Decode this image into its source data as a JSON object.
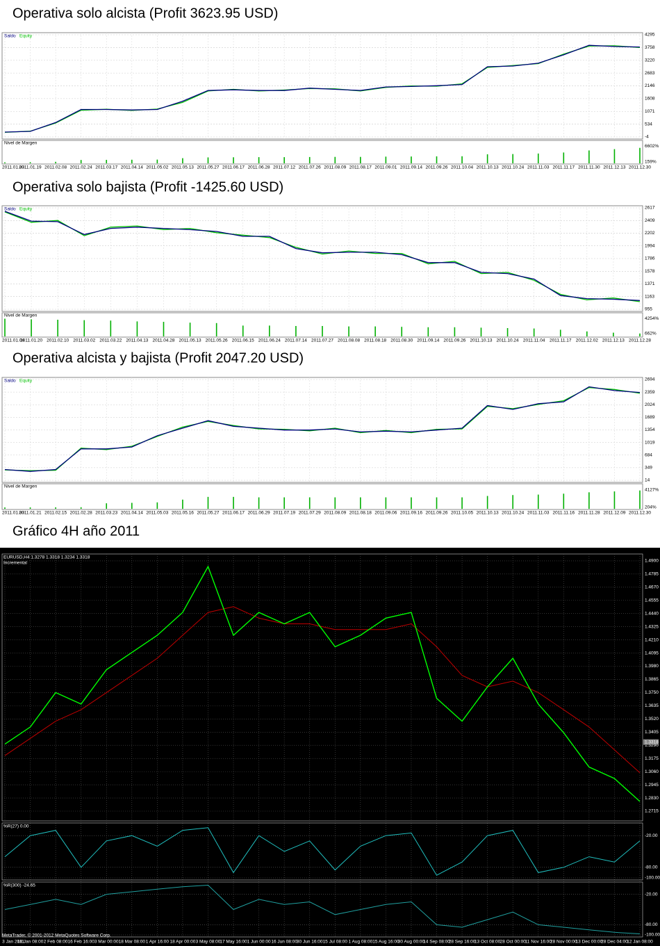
{
  "chart_data": [
    {
      "type": "line",
      "title": "Operativa solo alcista (Profit 3623.95 USD)",
      "categories": [
        "2011.01.03",
        "2011.01.19",
        "2011.02.08",
        "2011.02.24",
        "2011.03.17",
        "2011.04.14",
        "2011.05.02",
        "2011.05.13",
        "2011.05.27",
        "2011.06.17",
        "2011.06.28",
        "2011.07.12",
        "2011.07.26",
        "2011.08.09",
        "2011.08.17",
        "2011.09.01",
        "2011.09.14",
        "2011.09.26",
        "2011.10.04",
        "2011.10.13",
        "2011.10.24",
        "2011.11.03",
        "2011.11.17",
        "2011.11.30",
        "2011.12.13",
        "2011.12.30"
      ],
      "series": [
        {
          "name": "Saldo",
          "color": "#000080",
          "values": [
            200,
            230,
            600,
            1150,
            1150,
            1130,
            1150,
            1500,
            1950,
            1980,
            1950,
            1950,
            2050,
            2000,
            1950,
            2100,
            2120,
            2150,
            2200,
            2950,
            2980,
            3100,
            3450,
            3850,
            3800,
            3780
          ]
        },
        {
          "name": "Equity",
          "color": "#00c000",
          "values": [
            190,
            240,
            580,
            1120,
            1160,
            1110,
            1170,
            1450,
            1930,
            2000,
            1930,
            1970,
            2030,
            2020,
            1930,
            2080,
            2140,
            2130,
            2230,
            2920,
            3000,
            3080,
            3480,
            3820,
            3830,
            3760
          ]
        }
      ],
      "ylim": [
        -4,
        4295
      ],
      "yticks": [
        4295,
        3758,
        3220,
        2683,
        2146,
        1608,
        1071,
        534,
        -4
      ],
      "grid": true,
      "margin_panel": {
        "label": "Nivel de Margen",
        "color": "#00b000",
        "ylim": [
          0,
          7000
        ],
        "ticks": [
          {
            "value": 6602,
            "label": "6602%"
          },
          {
            "value": 159,
            "label": "159%"
          }
        ],
        "values": [
          400,
          450,
          600,
          1300,
          1350,
          1400,
          1450,
          2000,
          2300,
          2350,
          2400,
          2400,
          2450,
          2500,
          2500,
          2600,
          2650,
          2700,
          2750,
          3500,
          3600,
          3800,
          4200,
          5000,
          5500,
          6000
        ]
      }
    },
    {
      "type": "line",
      "title": "Operativa solo bajista (Profit -1425.60 USD)",
      "categories": [
        "2011.01.04",
        "2011.01.20",
        "2011.02.10",
        "2011.03.02",
        "2011.03.22",
        "2011.04.13",
        "2011.04.28",
        "2011.05.13",
        "2011.05.26",
        "2011.06.15",
        "2011.06.24",
        "2011.07.14",
        "2011.07.27",
        "2011.08.08",
        "2011.08.18",
        "2011.08.30",
        "2011.09.14",
        "2011.09.26",
        "2011.10.13",
        "2011.10.24",
        "2011.11.04",
        "2011.11.17",
        "2011.12.02",
        "2011.12.13",
        "2011.12.28"
      ],
      "series": [
        {
          "name": "Saldo",
          "color": "#000080",
          "values": [
            2560,
            2400,
            2390,
            2180,
            2280,
            2300,
            2280,
            2260,
            2230,
            2150,
            2150,
            1950,
            1880,
            1890,
            1890,
            1850,
            1720,
            1720,
            1560,
            1540,
            1450,
            1180,
            1130,
            1120,
            1100
          ]
        },
        {
          "name": "Equity",
          "color": "#00c000",
          "values": [
            2550,
            2380,
            2410,
            2160,
            2300,
            2320,
            2260,
            2280,
            2210,
            2170,
            2130,
            1970,
            1860,
            1910,
            1870,
            1870,
            1700,
            1740,
            1540,
            1560,
            1430,
            1200,
            1110,
            1140,
            1080
          ]
        }
      ],
      "ylim": [
        955,
        2617
      ],
      "yticks": [
        2617,
        2409,
        2202,
        1994,
        1786,
        1578,
        1371,
        1163,
        955
      ],
      "grid": true,
      "margin_panel": {
        "label": "Nivel de Margen",
        "color": "#00b000",
        "ylim": [
          0,
          4500
        ],
        "ticks": [
          {
            "value": 4254,
            "label": "4254%"
          },
          {
            "value": 662,
            "label": "662%"
          }
        ],
        "values": [
          4254,
          4100,
          4000,
          3900,
          3800,
          3600,
          3500,
          3300,
          3200,
          2600,
          2600,
          2500,
          2500,
          2400,
          2400,
          2300,
          2200,
          2200,
          2100,
          2000,
          1900,
          1600,
          1200,
          900,
          700
        ]
      }
    },
    {
      "type": "line",
      "title": "Operativa alcista y bajista (Profit 2047.20 USD)",
      "categories": [
        "2011.01.03",
        "2011.01.21",
        "2011.02.15",
        "2011.02.28",
        "2011.03.23",
        "2011.04.14",
        "2011.05.03",
        "2011.05.16",
        "2011.05.27",
        "2011.06.17",
        "2011.06.29",
        "2011.07.19",
        "2011.07.29",
        "2011.08.09",
        "2011.08.18",
        "2011.09.06",
        "2011.09.16",
        "2011.09.26",
        "2011.10.05",
        "2011.10.13",
        "2011.10.24",
        "2011.11.03",
        "2011.11.16",
        "2011.11.28",
        "2011.12.09",
        "2011.12.30"
      ],
      "series": [
        {
          "name": "Saldo",
          "color": "#000080",
          "values": [
            300,
            250,
            300,
            850,
            850,
            900,
            1200,
            1400,
            1600,
            1450,
            1400,
            1350,
            1350,
            1380,
            1300,
            1320,
            1300,
            1350,
            1400,
            2000,
            1900,
            2050,
            2100,
            2500,
            2400,
            2350
          ]
        },
        {
          "name": "Equity",
          "color": "#00c000",
          "values": [
            290,
            270,
            280,
            870,
            830,
            920,
            1180,
            1430,
            1580,
            1470,
            1380,
            1370,
            1330,
            1400,
            1280,
            1340,
            1280,
            1370,
            1380,
            1980,
            1920,
            2030,
            2130,
            2480,
            2430,
            2330
          ]
        }
      ],
      "ylim": [
        14,
        2694
      ],
      "yticks": [
        2694,
        2359,
        2024,
        1689,
        1354,
        1019,
        684,
        349,
        14
      ],
      "grid": true,
      "margin_panel": {
        "label": "Nivel de Margen",
        "color": "#00b000",
        "ylim": [
          0,
          4400
        ],
        "ticks": [
          {
            "value": 4127,
            "label": "4127%"
          },
          {
            "value": 204,
            "label": "204%"
          }
        ],
        "values": [
          300,
          300,
          320,
          340,
          1200,
          1300,
          1400,
          2000,
          2600,
          2600,
          2500,
          2500,
          2500,
          2500,
          2500,
          2500,
          2500,
          2500,
          2500,
          2800,
          3000,
          3100,
          3300,
          3600,
          3800,
          4000
        ]
      }
    },
    {
      "type": "price",
      "title": "Gráfico 4H año 2011",
      "header": "EURUSD,H4  1.3278 1.3318 1.3234 1.3318",
      "subheader": "Incremental",
      "footer": "MetaTrader, © 2001-2012 MetaQuotes Software Corp.",
      "categories": [
        "3 Jan 2011",
        "18 Jan 08:00",
        "2 Feb 08:00",
        "16 Feb 16:00",
        "3 Mar 00:00",
        "18 Mar 08:00",
        "1 Apr 16:00",
        "18 Apr 00:00",
        "3 May 08:00",
        "17 May 16:00",
        "1 Jun 00:00",
        "16 Jun 08:00",
        "30 Jun 16:00",
        "15 Jul 08:00",
        "1 Aug 08:00",
        "15 Aug 16:00",
        "30 Aug 00:00",
        "14 Sep 08:00",
        "28 Sep 16:00",
        "13 Oct 08:00",
        "28 Oct 00:00",
        "11 Nov 16:00",
        "28 Nov 00:00",
        "13 Dec 00:00",
        "28 Dec 04:00",
        "12 Jan 08:00"
      ],
      "series": [
        {
          "color": "#00ff00",
          "values": [
            1.33,
            1.345,
            1.375,
            1.365,
            1.395,
            1.41,
            1.425,
            1.445,
            1.485,
            1.425,
            1.445,
            1.435,
            1.445,
            1.415,
            1.425,
            1.44,
            1.445,
            1.37,
            1.35,
            1.38,
            1.405,
            1.365,
            1.34,
            1.31,
            1.3,
            1.28
          ]
        },
        {
          "color": "#c00000",
          "values": [
            1.32,
            1.335,
            1.35,
            1.36,
            1.375,
            1.39,
            1.405,
            1.425,
            1.445,
            1.45,
            1.44,
            1.435,
            1.435,
            1.43,
            1.43,
            1.43,
            1.435,
            1.415,
            1.39,
            1.38,
            1.385,
            1.375,
            1.36,
            1.345,
            1.325,
            1.305
          ]
        }
      ],
      "ylim": [
        1.263,
        1.496
      ],
      "yticks": [
        {
          "value": 1.49,
          "label": "1.4900"
        },
        {
          "value": 1.4785,
          "label": "1.4785"
        },
        {
          "value": 1.467,
          "label": "1.4670"
        },
        {
          "value": 1.4555,
          "label": "1.4555"
        },
        {
          "value": 1.444,
          "label": "1.4440"
        },
        {
          "value": 1.4325,
          "label": "1.4325"
        },
        {
          "value": 1.421,
          "label": "1.4210"
        },
        {
          "value": 1.4095,
          "label": "1.4095"
        },
        {
          "value": 1.398,
          "label": "1.3980"
        },
        {
          "value": 1.3865,
          "label": "1.3865"
        },
        {
          "value": 1.375,
          "label": "1.3750"
        },
        {
          "value": 1.3635,
          "label": "1.3635"
        },
        {
          "value": 1.352,
          "label": "1.3520"
        },
        {
          "value": 1.3405,
          "label": "1.3405"
        },
        {
          "value": 1.329,
          "label": "1.3290"
        },
        {
          "value": 1.3175,
          "label": "1.3175"
        },
        {
          "value": 1.306,
          "label": "1.3060"
        },
        {
          "value": 1.2945,
          "label": "1.2945"
        },
        {
          "value": 1.283,
          "label": "1.2830"
        },
        {
          "value": 1.2715,
          "label": "1.2715"
        }
      ],
      "last_price": {
        "value": 1.3318,
        "label": "1.3318"
      },
      "indicators": [
        {
          "label": "%R(27) 0.00",
          "color": "#20c0c0",
          "ylim": [
            -100,
            0
          ],
          "yticks": [
            {
              "value": -20,
              "label": "-20.00"
            },
            {
              "value": -80,
              "label": "-80.00"
            },
            {
              "value": -100,
              "label": "-100.00"
            }
          ],
          "values": [
            -60,
            -20,
            -10,
            -80,
            -30,
            -20,
            -40,
            -10,
            -5,
            -90,
            -20,
            -50,
            -30,
            -85,
            -40,
            -20,
            -15,
            -95,
            -70,
            -20,
            -10,
            -90,
            -80,
            -60,
            -70,
            -30
          ]
        },
        {
          "label": "%R(300) -24.65",
          "color": "#20a0a0",
          "ylim": [
            -100,
            0
          ],
          "yticks": [
            {
              "value": -20,
              "label": "-20.00"
            },
            {
              "value": -80,
              "label": "-80.00"
            },
            {
              "value": -100,
              "label": "-100.00"
            }
          ],
          "values": [
            -50,
            -40,
            -30,
            -40,
            -20,
            -15,
            -10,
            -5,
            -2,
            -50,
            -30,
            -40,
            -35,
            -60,
            -50,
            -40,
            -35,
            -80,
            -85,
            -70,
            -55,
            -80,
            -85,
            -90,
            -95,
            -98
          ]
        }
      ]
    }
  ]
}
